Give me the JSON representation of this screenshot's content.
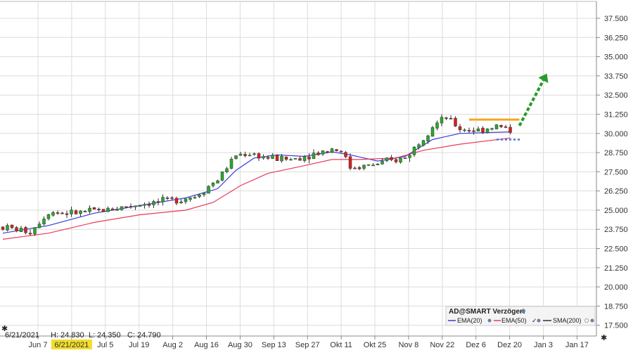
{
  "chart_data": {
    "type": "candlestick",
    "y_range": [
      16.8,
      38.6
    ],
    "y_ticks": [
      "17.500",
      "18.750",
      "20.000",
      "21.250",
      "22.500",
      "23.750",
      "25.000",
      "26.250",
      "27.500",
      "28.750",
      "30.000",
      "31.250",
      "32.500",
      "33.750",
      "35.000",
      "36.250",
      "37.500"
    ],
    "x_ticks": [
      "Jun 7",
      "6/21/2021",
      "Jul 5",
      "Jul 19",
      "Aug 2",
      "Aug 16",
      "Aug 30",
      "Sep 13",
      "Sep 27",
      "Okt 11",
      "Okt 25",
      "Nov 8",
      "Nov 22",
      "Dez 6",
      "Dez 20",
      "Jan 3",
      "Jan 17"
    ],
    "highlighted_tick": "6/21/2021",
    "info_line": {
      "date": "6/21/2021",
      "h_label": "H:",
      "h": "24.830",
      "l_label": "L:",
      "l": "24.350",
      "c_label": "C:",
      "c": "24.790"
    },
    "ohlc_anchors": [
      [
        0,
        23.9
      ],
      [
        6,
        23.6
      ],
      [
        10,
        24.9
      ],
      [
        15,
        24.8
      ],
      [
        22,
        25.0
      ],
      [
        30,
        25.4
      ],
      [
        36,
        25.6
      ],
      [
        42,
        25.9
      ],
      [
        47,
        27.0
      ],
      [
        51,
        28.6
      ],
      [
        54,
        28.7
      ],
      [
        58,
        28.4
      ],
      [
        63,
        28.3
      ],
      [
        67,
        28.6
      ],
      [
        72,
        29.0
      ],
      [
        74,
        28.9
      ],
      [
        76,
        27.8
      ],
      [
        80,
        27.9
      ],
      [
        85,
        28.2
      ],
      [
        88,
        28.4
      ],
      [
        91,
        29.4
      ],
      [
        94,
        30.5
      ],
      [
        97,
        31.0
      ],
      [
        100,
        30.3
      ],
      [
        104,
        30.2
      ],
      [
        108,
        30.5
      ],
      [
        111,
        30.2
      ]
    ],
    "series": [
      {
        "name": "EMA(20)",
        "color": "#3b3bd6",
        "values": [
          [
            0,
            23.5
          ],
          [
            10,
            24.0
          ],
          [
            20,
            24.8
          ],
          [
            30,
            25.3
          ],
          [
            40,
            25.8
          ],
          [
            47,
            26.4
          ],
          [
            51,
            27.6
          ],
          [
            55,
            28.4
          ],
          [
            60,
            28.6
          ],
          [
            66,
            28.5
          ],
          [
            72,
            28.8
          ],
          [
            76,
            28.6
          ],
          [
            82,
            28.2
          ],
          [
            88,
            28.5
          ],
          [
            94,
            29.6
          ],
          [
            100,
            30.0
          ],
          [
            111,
            30.1
          ]
        ]
      },
      {
        "name": "EMA(50)",
        "color": "#e83a5a",
        "values": [
          [
            0,
            23.1
          ],
          [
            10,
            23.5
          ],
          [
            20,
            24.2
          ],
          [
            30,
            24.7
          ],
          [
            40,
            25.0
          ],
          [
            46,
            25.5
          ],
          [
            52,
            26.6
          ],
          [
            58,
            27.4
          ],
          [
            66,
            27.9
          ],
          [
            72,
            28.3
          ],
          [
            78,
            28.3
          ],
          [
            86,
            28.4
          ],
          [
            92,
            28.9
          ],
          [
            100,
            29.3
          ],
          [
            111,
            29.7
          ]
        ]
      },
      {
        "name": "SMA(200)",
        "color": "#333333",
        "values": []
      }
    ],
    "annotations": {
      "resistance": {
        "value": 30.9,
        "color": "#f5a623"
      },
      "support": {
        "value": 29.6,
        "color": "#4a6fe0"
      },
      "arrow": {
        "from": [
          30.5
        ],
        "to": [
          33.9
        ],
        "color": "#2a9a2a"
      }
    },
    "legend": {
      "title": "AD@SMART Verzögert",
      "entries": [
        "EMA(20)",
        "EMA(50)",
        "SMA(200)"
      ]
    },
    "colors": {
      "up": "#2aa82a",
      "down": "#d62020",
      "wick": "#333333",
      "grid": "#dcdcdc",
      "highlight": "#f2dd2c"
    }
  }
}
